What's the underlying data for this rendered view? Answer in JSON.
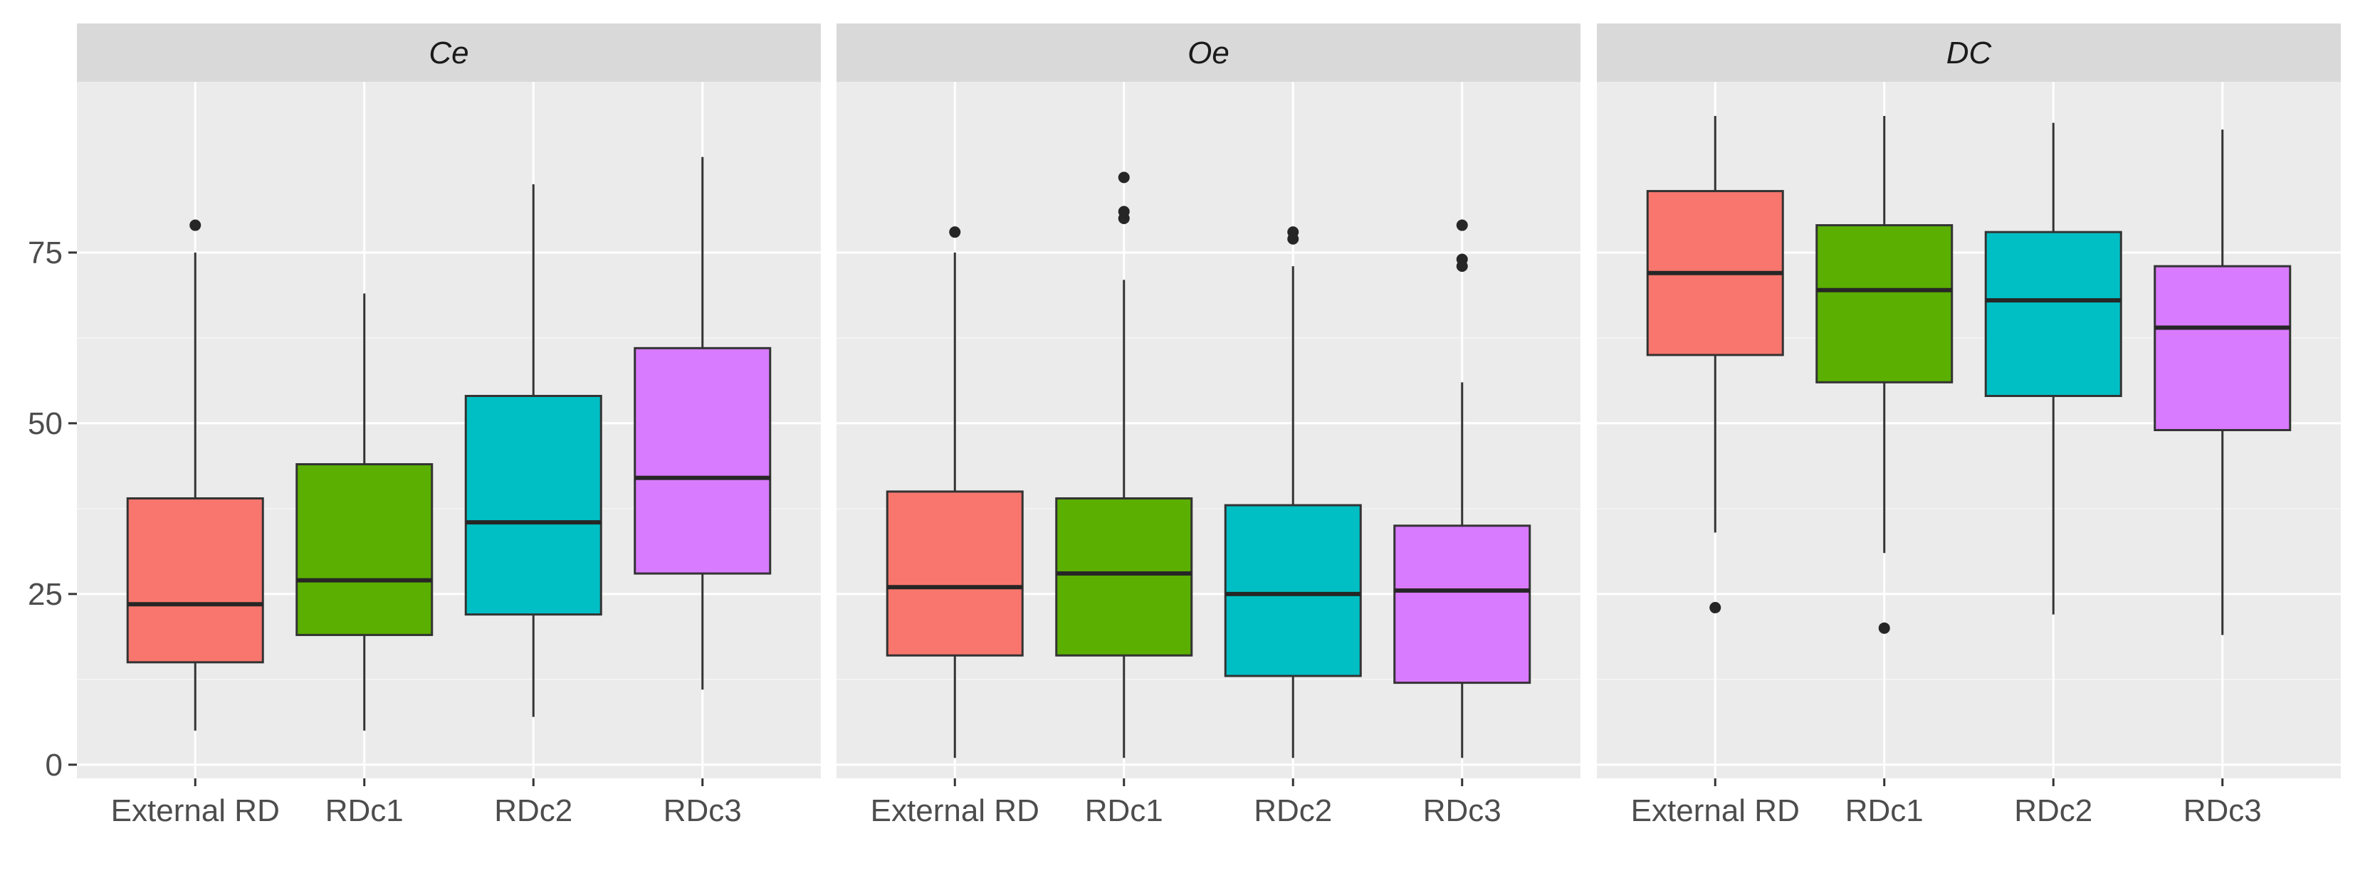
{
  "chart_data": {
    "type": "boxplot",
    "layout": "faceted, 3 panels side by side, shared y-axis",
    "categories": [
      "External RD",
      "RDc1",
      "RDc2",
      "RDc3"
    ],
    "colors": [
      "#F8766D",
      "#5BAF00",
      "#00BFC4",
      "#D97BFF"
    ],
    "ylim": [
      -2,
      100
    ],
    "yticks": [
      0,
      25,
      50,
      75
    ],
    "yticks_labels": [
      "0",
      "25",
      "50",
      "75"
    ],
    "xlabel": "",
    "ylabel": "",
    "legend": "none",
    "facets": [
      {
        "label": "Ce",
        "boxes": [
          {
            "category": "External RD",
            "whisker_low": 5,
            "q1": 15,
            "median": 23.5,
            "q3": 39,
            "whisker_high": 75,
            "outliers": [
              79
            ]
          },
          {
            "category": "RDc1",
            "whisker_low": 5,
            "q1": 19,
            "median": 27,
            "q3": 44,
            "whisker_high": 69,
            "outliers": []
          },
          {
            "category": "RDc2",
            "whisker_low": 7,
            "q1": 22,
            "median": 35.5,
            "q3": 54,
            "whisker_high": 85,
            "outliers": []
          },
          {
            "category": "RDc3",
            "whisker_low": 11,
            "q1": 28,
            "median": 42,
            "q3": 61,
            "whisker_high": 89,
            "outliers": []
          }
        ]
      },
      {
        "label": "Oe",
        "boxes": [
          {
            "category": "External RD",
            "whisker_low": 1,
            "q1": 16,
            "median": 26,
            "q3": 40,
            "whisker_high": 75,
            "outliers": [
              78
            ]
          },
          {
            "category": "RDc1",
            "whisker_low": 1,
            "q1": 16,
            "median": 28,
            "q3": 39,
            "whisker_high": 71,
            "outliers": [
              80,
              81,
              86
            ]
          },
          {
            "category": "RDc2",
            "whisker_low": 1,
            "q1": 13,
            "median": 25,
            "q3": 38,
            "whisker_high": 73,
            "outliers": [
              77,
              78
            ]
          },
          {
            "category": "RDc3",
            "whisker_low": 1,
            "q1": 12,
            "median": 25.5,
            "q3": 35,
            "whisker_high": 56,
            "outliers": [
              73,
              74,
              79
            ]
          }
        ]
      },
      {
        "label": "DC",
        "boxes": [
          {
            "category": "External RD",
            "whisker_low": 34,
            "q1": 60,
            "median": 72,
            "q3": 84,
            "whisker_high": 95,
            "outliers": [
              23
            ]
          },
          {
            "category": "RDc1",
            "whisker_low": 31,
            "q1": 56,
            "median": 69.5,
            "q3": 79,
            "whisker_high": 95,
            "outliers": [
              20
            ]
          },
          {
            "category": "RDc2",
            "whisker_low": 22,
            "q1": 54,
            "median": 68,
            "q3": 78,
            "whisker_high": 94,
            "outliers": []
          },
          {
            "category": "RDc3",
            "whisker_low": 19,
            "q1": 49,
            "median": 64,
            "q3": 73,
            "whisker_high": 93,
            "outliers": []
          }
        ]
      }
    ]
  }
}
